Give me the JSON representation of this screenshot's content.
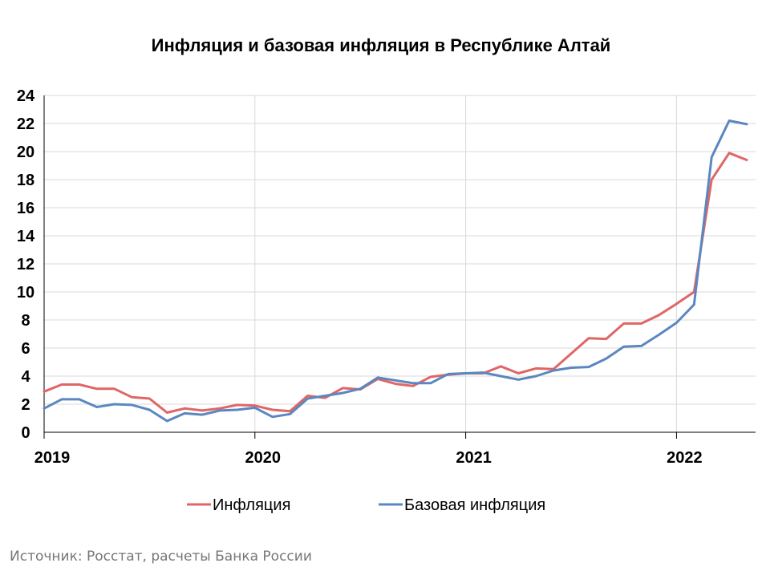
{
  "chart_data": {
    "type": "line",
    "title": "Инфляция и базовая инфляция в Республике Алтай",
    "xlabel": "",
    "ylabel": "",
    "x_ticks": [
      "2019",
      "2020",
      "2021",
      "2022"
    ],
    "y_ticks": [
      "0",
      "2",
      "4",
      "6",
      "8",
      "10",
      "12",
      "14",
      "16",
      "18",
      "20",
      "22",
      "24"
    ],
    "ylim": [
      0,
      24
    ],
    "x": [
      "2019-01",
      "2019-02",
      "2019-03",
      "2019-04",
      "2019-05",
      "2019-06",
      "2019-07",
      "2019-08",
      "2019-09",
      "2019-10",
      "2019-11",
      "2019-12",
      "2020-01",
      "2020-02",
      "2020-03",
      "2020-04",
      "2020-05",
      "2020-06",
      "2020-07",
      "2020-08",
      "2020-09",
      "2020-10",
      "2020-11",
      "2020-12",
      "2021-01",
      "2021-02",
      "2021-03",
      "2021-04",
      "2021-05",
      "2021-06",
      "2021-07",
      "2021-08",
      "2021-09",
      "2021-10",
      "2021-11",
      "2021-12",
      "2022-01",
      "2022-02",
      "2022-03",
      "2022-04",
      "2022-05"
    ],
    "grid": true,
    "legend_position": "bottom",
    "series": [
      {
        "name": "Инфляция",
        "color": "#e06666",
        "values": [
          2.9,
          3.4,
          3.4,
          3.1,
          3.1,
          2.5,
          2.4,
          1.4,
          1.7,
          1.55,
          1.7,
          1.95,
          1.9,
          1.6,
          1.5,
          2.6,
          2.45,
          3.15,
          3.05,
          3.8,
          3.45,
          3.3,
          3.95,
          4.1,
          4.2,
          4.2,
          4.7,
          4.2,
          4.55,
          4.5,
          5.6,
          6.7,
          6.65,
          7.75,
          7.75,
          8.35,
          9.15,
          10.0,
          18.0,
          19.9,
          19.4
        ]
      },
      {
        "name": "Базовая инфляция",
        "color": "#5b87c0",
        "values": [
          1.7,
          2.35,
          2.35,
          1.8,
          2.0,
          1.95,
          1.6,
          0.8,
          1.35,
          1.25,
          1.55,
          1.6,
          1.75,
          1.1,
          1.3,
          2.4,
          2.6,
          2.8,
          3.1,
          3.9,
          3.7,
          3.5,
          3.5,
          4.15,
          4.2,
          4.25,
          4.0,
          3.75,
          4.0,
          4.4,
          4.6,
          4.65,
          5.25,
          6.1,
          6.15,
          6.95,
          7.8,
          9.1,
          19.6,
          22.2,
          21.95
        ]
      }
    ]
  },
  "source_note": "Источник: Росстат, расчеты Банка России"
}
